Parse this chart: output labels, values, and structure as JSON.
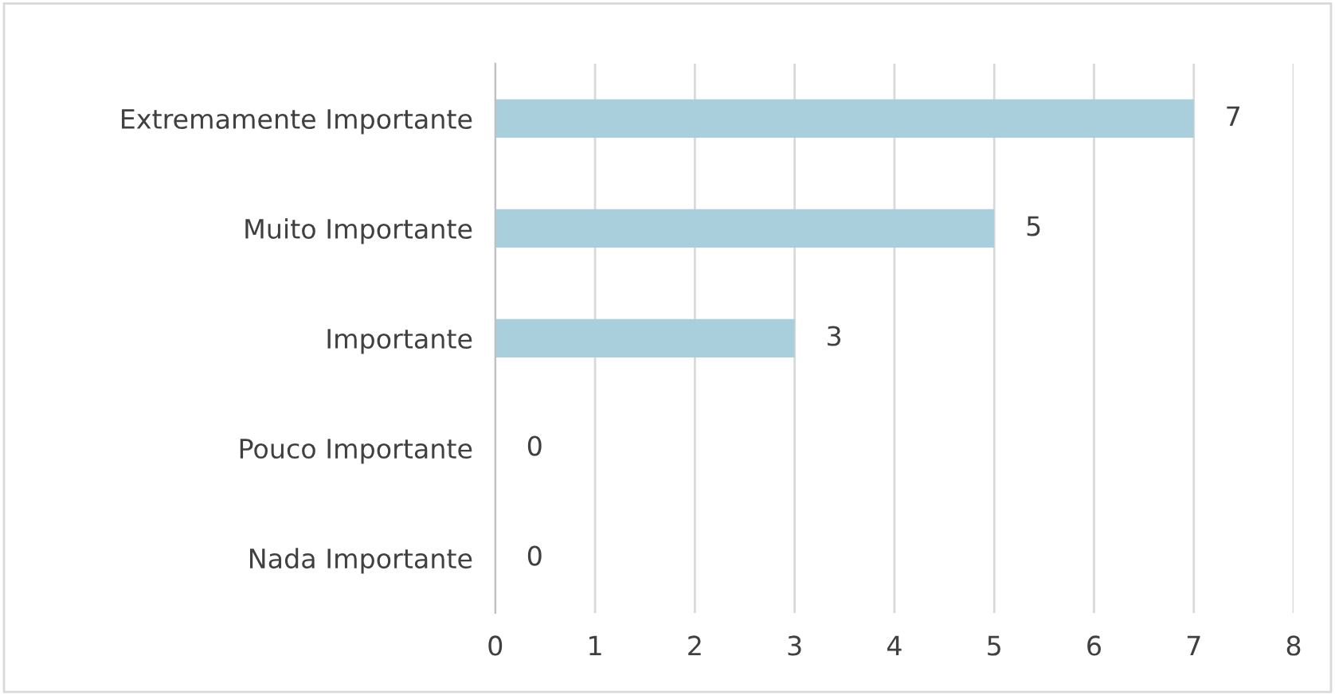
{
  "chart_data": {
    "type": "bar",
    "orientation": "horizontal",
    "categories": [
      "Extremamente Importante",
      "Muito Importante",
      "Importante",
      "Pouco Importante",
      "Nada Importante"
    ],
    "values": [
      7,
      5,
      3,
      0,
      0
    ],
    "color": "#a9cfdc",
    "xlim": [
      0,
      8
    ],
    "xticks": [
      0,
      1,
      2,
      3,
      4,
      5,
      6,
      7,
      8
    ],
    "grid": "x",
    "data_labels": true,
    "legend": false
  }
}
